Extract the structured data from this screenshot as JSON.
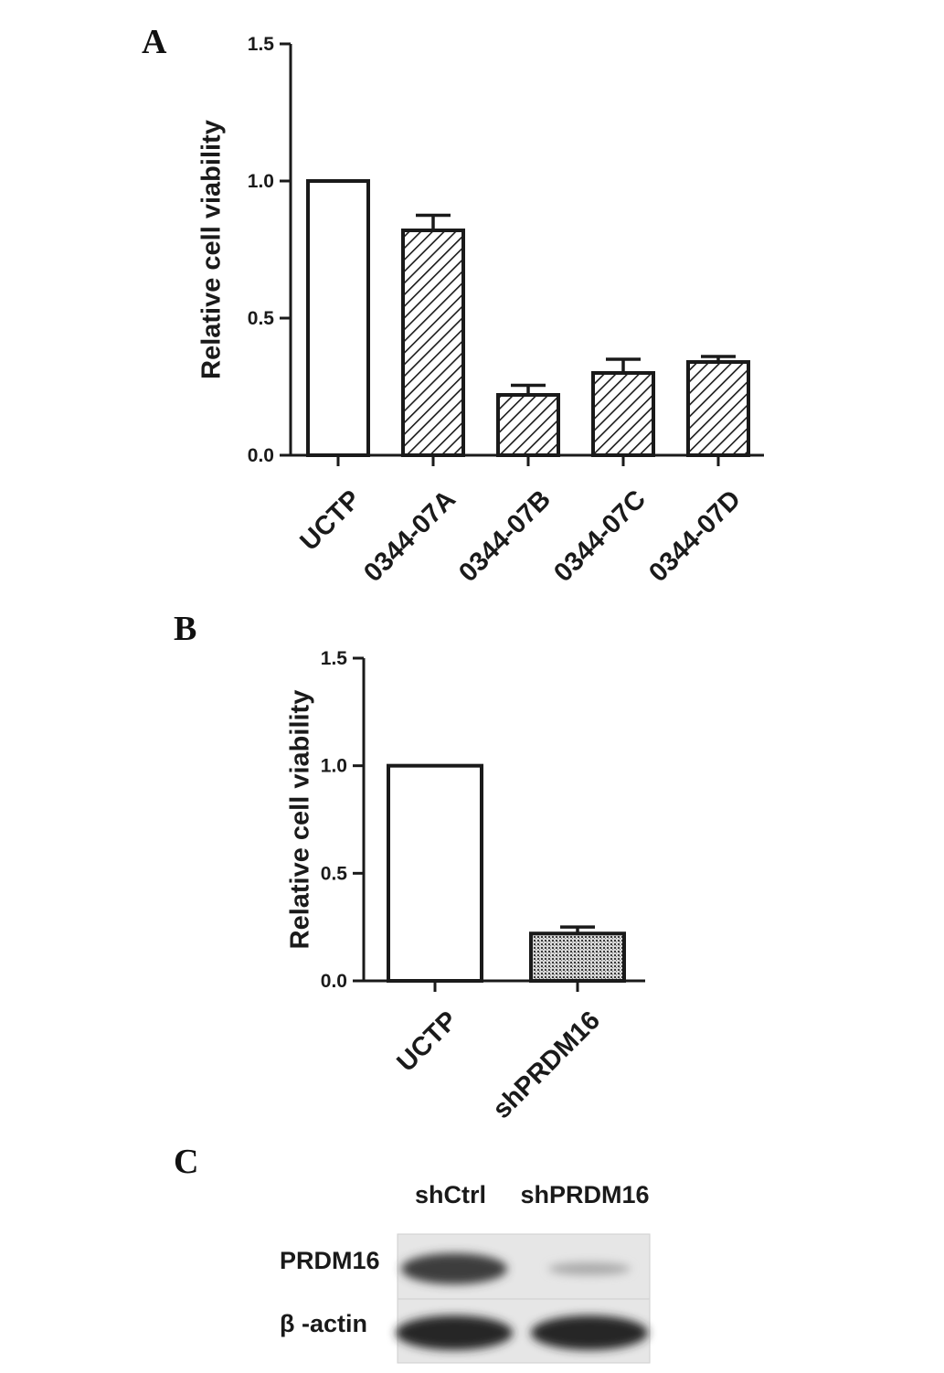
{
  "panels": {
    "a": "A",
    "b": "B",
    "c": "C"
  },
  "chart_data": [
    {
      "type": "bar",
      "categories": [
        "UCTP",
        "0344-07A",
        "0344-07B",
        "0344-07C",
        "0344-07D"
      ],
      "values": [
        1.0,
        0.82,
        0.22,
        0.3,
        0.34
      ],
      "errors": [
        0.0,
        0.055,
        0.035,
        0.05,
        0.02
      ],
      "fills": [
        "open",
        "hatch",
        "hatch",
        "hatch",
        "hatch"
      ],
      "title": "",
      "xlabel": "",
      "ylabel": "Relative cell viability",
      "ylim": [
        0,
        1.5
      ],
      "yticks": [
        "0.0",
        "0.5",
        "1.0",
        "1.5"
      ],
      "grid": false
    },
    {
      "type": "bar",
      "categories": [
        "UCTP",
        "shPRDM16"
      ],
      "values": [
        1.0,
        0.22
      ],
      "errors": [
        0.0,
        0.03
      ],
      "fills": [
        "open",
        "dots"
      ],
      "title": "",
      "xlabel": "",
      "ylabel": "Relative cell viability",
      "ylim": [
        0,
        1.5
      ],
      "yticks": [
        "0.0",
        "0.5",
        "1.0",
        "1.5"
      ],
      "grid": false
    }
  ],
  "blot": {
    "lanes": [
      "shCtrl",
      "shPRDM16"
    ],
    "rows": [
      {
        "label": "PRDM16",
        "intensities": [
          0.85,
          0.3
        ]
      },
      {
        "label": "β -actin",
        "intensities": [
          0.95,
          0.95
        ]
      }
    ]
  },
  "colors": {
    "ink": "#1a1a1a",
    "background": "#ffffff",
    "membrane": "#e6e6e6"
  }
}
